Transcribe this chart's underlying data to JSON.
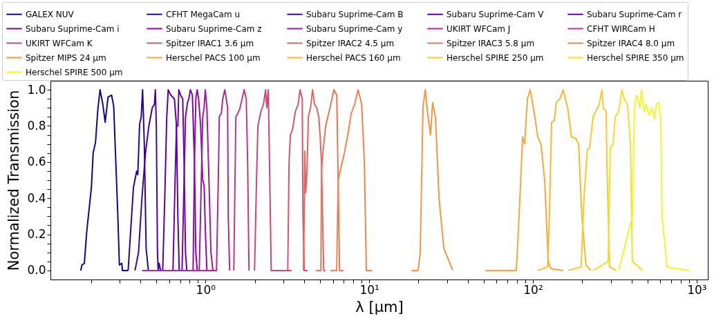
{
  "chart_data": {
    "type": "line",
    "xlabel": "λ [μm]",
    "ylabel": "Normalized Transmission",
    "log": "x",
    "grid": false,
    "legend": "top",
    "marker": "none",
    "line_style": "solid",
    "xlim": [
      0.113,
      1170
    ],
    "ylim": [
      -0.05,
      1.05
    ],
    "xticks": [
      {
        "value": 0.2,
        "label": null
      },
      {
        "value": 0.3,
        "label": null
      },
      {
        "value": 0.4,
        "label": null
      },
      {
        "value": 0.5,
        "label": null
      },
      {
        "value": 0.6,
        "label": null
      },
      {
        "value": 0.7,
        "label": null
      },
      {
        "value": 0.8,
        "label": null
      },
      {
        "value": 0.9,
        "label": null
      },
      {
        "value": 1,
        "label": "10⁰"
      },
      {
        "value": 2,
        "label": null
      },
      {
        "value": 3,
        "label": null
      },
      {
        "value": 4,
        "label": null
      },
      {
        "value": 5,
        "label": null
      },
      {
        "value": 6,
        "label": null
      },
      {
        "value": 7,
        "label": null
      },
      {
        "value": 8,
        "label": null
      },
      {
        "value": 9,
        "label": null
      },
      {
        "value": 10,
        "label": "10¹"
      },
      {
        "value": 20,
        "label": null
      },
      {
        "value": 30,
        "label": null
      },
      {
        "value": 40,
        "label": null
      },
      {
        "value": 50,
        "label": null
      },
      {
        "value": 60,
        "label": null
      },
      {
        "value": 70,
        "label": null
      },
      {
        "value": 80,
        "label": null
      },
      {
        "value": 90,
        "label": null
      },
      {
        "value": 100,
        "label": "10²"
      },
      {
        "value": 200,
        "label": null
      },
      {
        "value": 300,
        "label": null
      },
      {
        "value": 400,
        "label": null
      },
      {
        "value": 500,
        "label": null
      },
      {
        "value": 600,
        "label": null
      },
      {
        "value": 700,
        "label": null
      },
      {
        "value": 800,
        "label": null
      },
      {
        "value": 900,
        "label": null
      },
      {
        "value": 1000,
        "label": "10³"
      }
    ],
    "yticks": [
      {
        "value": 0,
        "label": "0.0"
      },
      {
        "value": 0.05,
        "label": null
      },
      {
        "value": 0.1,
        "label": null
      },
      {
        "value": 0.15,
        "label": null
      },
      {
        "value": 0.2,
        "label": "0.2"
      },
      {
        "value": 0.25,
        "label": null
      },
      {
        "value": 0.3,
        "label": null
      },
      {
        "value": 0.35,
        "label": null
      },
      {
        "value": 0.4,
        "label": "0.4"
      },
      {
        "value": 0.45,
        "label": null
      },
      {
        "value": 0.5,
        "label": null
      },
      {
        "value": 0.55,
        "label": null
      },
      {
        "value": 0.6,
        "label": "0.6"
      },
      {
        "value": 0.65,
        "label": null
      },
      {
        "value": 0.7,
        "label": null
      },
      {
        "value": 0.75,
        "label": null
      },
      {
        "value": 0.8,
        "label": "0.8"
      },
      {
        "value": 0.85,
        "label": null
      },
      {
        "value": 0.9,
        "label": null
      },
      {
        "value": 0.95,
        "label": null
      },
      {
        "value": 1,
        "label": "1.0"
      }
    ],
    "series": [
      {
        "name": "GALEX NUV",
        "color": "#0d0887",
        "x": [
          0.173,
          0.176,
          0.182,
          0.188,
          0.201,
          0.206,
          0.213,
          0.22,
          0.227,
          0.236,
          0.244,
          0.254,
          0.267,
          0.275,
          0.291,
          0.298,
          0.308,
          0.311,
          0.337
        ],
        "values": [
          0,
          0.03,
          0.04,
          0.21,
          0.46,
          0.65,
          0.71,
          0.89,
          1.0,
          0.92,
          0.82,
          0.96,
          0.97,
          0.91,
          0.32,
          0.03,
          0.04,
          0,
          0
        ]
      },
      {
        "name": "CFHT  MegaCam u",
        "color": "#2a0593",
        "x": [
          0.337,
          0.348,
          0.363,
          0.38,
          0.386,
          0.396,
          0.405,
          0.413,
          0.423,
          0.434,
          0.448
        ],
        "values": [
          0,
          0.2,
          0.46,
          0.55,
          0.53,
          0.81,
          0.85,
          1.0,
          0.7,
          0.12,
          0
        ]
      },
      {
        "name": "Subaru Suprime-Cam B",
        "color": "#41049d",
        "x": [
          0.371,
          0.39,
          0.409,
          0.43,
          0.451,
          0.473,
          0.488,
          0.494,
          0.501,
          0.509,
          0.514,
          0.521,
          0.532,
          0.548
        ],
        "values": [
          0,
          0.1,
          0.4,
          0.65,
          0.8,
          0.9,
          0.92,
          1.0,
          0.8,
          0.1,
          0,
          0.04,
          0,
          0
        ]
      },
      {
        "name": "Subaru Suprime-Cam V",
        "color": "#5601a4",
        "x": [
          0.548,
          0.564,
          0.58,
          0.592,
          0.615,
          0.646,
          0.665,
          0.678,
          0.691
        ],
        "values": [
          0,
          0.4,
          0.85,
          1.0,
          0.97,
          0.95,
          0.8,
          0.3,
          0
        ]
      },
      {
        "name": "Subaru Suprime-Cam r",
        "color": "#6a00a8",
        "x": [
          0.633,
          0.652,
          0.665,
          0.678,
          0.687,
          0.705,
          0.726,
          0.74,
          0.755,
          0.769
        ],
        "values": [
          0,
          0.5,
          0.8,
          0.8,
          1.0,
          0.97,
          0.95,
          0.6,
          0.1,
          0
        ]
      },
      {
        "name": "Subaru Suprime-Cam i",
        "color": "#7e03a8",
        "x": [
          0.719,
          0.74,
          0.755,
          0.777,
          0.792,
          0.808,
          0.832,
          0.856,
          0.873,
          0.89
        ],
        "values": [
          0,
          0.5,
          0.85,
          0.93,
          0.95,
          1.0,
          0.97,
          0.6,
          0.1,
          0
        ]
      },
      {
        "name": "Subaru Suprime-Cam z",
        "color": "#8f0da4",
        "x": [
          0.84,
          0.856,
          0.873,
          0.89,
          0.908,
          0.934,
          0.962,
          0.981,
          1.0,
          1.02
        ],
        "values": [
          0,
          0.6,
          0.95,
          1.0,
          0.95,
          0.8,
          0.5,
          0.47,
          0.2,
          0
        ]
      },
      {
        "name": "Subaru Suprime-Cam y",
        "color": "#a01a9c",
        "x": [
          0.916,
          0.943,
          0.962,
          0.981,
          0.997,
          1.02,
          1.05,
          1.08,
          1.11
        ],
        "values": [
          0,
          0.5,
          0.85,
          0.9,
          1.0,
          0.9,
          0.5,
          0.1,
          0
        ]
      },
      {
        "name": "UKIRT WFCam J",
        "color": "#b12a90",
        "x": [
          0.41,
          1.168,
          1.203,
          1.214,
          1.25,
          1.275,
          1.313,
          1.339,
          1.365,
          1.378,
          1.405
        ],
        "values": [
          0,
          0,
          0.6,
          0.85,
          0.87,
          0.95,
          1.0,
          0.95,
          0.9,
          0.3,
          0
        ]
      },
      {
        "name": "CFHT WIRCam H",
        "color": "#bf3984",
        "x": [
          1.489,
          1.533,
          1.579,
          1.625,
          1.674,
          1.723,
          1.774,
          1.809,
          1.844
        ],
        "values": [
          0,
          0.85,
          0.87,
          0.9,
          0.95,
          1.0,
          0.95,
          0.6,
          0
        ]
      },
      {
        "name": "UKIRT WFCam K",
        "color": "#cc4778",
        "x": [
          1.993,
          2.05,
          2.09,
          2.18,
          2.26,
          2.33,
          2.37,
          2.42,
          2.47,
          2.52,
          3.35
        ],
        "values": [
          0,
          0.5,
          0.8,
          0.88,
          0.92,
          1.0,
          0.9,
          1.0,
          0.5,
          0,
          0
        ]
      },
      {
        "name": "Spitzer IRAC1 3.6 μm",
        "color": "#d6556d",
        "x": [
          3.0,
          3.18,
          3.24,
          3.3,
          3.4,
          3.54,
          3.68,
          3.78,
          3.9,
          3.94,
          4.01,
          4.21
        ],
        "values": [
          0,
          0,
          0.6,
          0.75,
          0.78,
          0.88,
          0.92,
          1.0,
          0.95,
          0.3,
          0,
          0
        ]
      },
      {
        "name": "Spitzer IRAC2 4.5 μm",
        "color": "#e16462",
        "x": [
          3.97,
          4.05,
          4.09,
          4.17,
          4.25,
          4.38,
          4.51,
          4.64,
          4.78,
          4.92,
          5.01,
          5.11,
          5.27,
          5.42
        ],
        "values": [
          0,
          0.66,
          0.43,
          0.55,
          0.85,
          0.9,
          1.0,
          0.92,
          0.9,
          0.85,
          0.75,
          0.6,
          0,
          0
        ]
      },
      {
        "name": "Spitzer IRAC3 5.8 μm",
        "color": "#ea7457",
        "x": [
          4.73,
          5.07,
          5.11,
          5.21,
          5.42,
          5.69,
          5.92,
          6.09,
          6.34,
          6.46,
          6.59,
          6.98
        ],
        "values": [
          0,
          0,
          0.55,
          0.65,
          0.8,
          0.88,
          0.95,
          1.0,
          0.97,
          0.5,
          0,
          0
        ]
      },
      {
        "name": "Spitzer IRAC4 8.0 μm",
        "color": "#f2844b",
        "x": [
          5.8,
          6.33,
          6.46,
          6.65,
          7.05,
          7.4,
          7.77,
          8.15,
          8.56,
          8.99,
          9.34,
          9.61,
          10.4
        ],
        "values": [
          0,
          0,
          0.5,
          0.55,
          0.65,
          0.75,
          0.87,
          0.92,
          1.0,
          0.92,
          0.6,
          0,
          0
        ]
      },
      {
        "name": "Spitzer MIPS 24 μm",
        "color": "#f89540",
        "x": [
          18.1,
          19.9,
          20.5,
          21.3,
          22.0,
          22.8,
          23.7,
          24.4,
          25.4,
          26.7,
          28.6,
          32.4
        ],
        "values": [
          0,
          0,
          0.1,
          0.9,
          1.0,
          0.86,
          0.75,
          0.93,
          0.85,
          0.4,
          0.12,
          0
        ]
      },
      {
        "name": "Herschel PACS 100 μm",
        "color": "#fca636",
        "x": [
          51.2,
          79.2,
          82.3,
          86.5,
          89.0,
          92.5,
          96.2,
          102,
          107,
          112,
          118,
          124,
          129,
          153
        ],
        "values": [
          0,
          0,
          0.3,
          0.74,
          0.7,
          0.95,
          1.0,
          0.87,
          0.74,
          0.7,
          0.5,
          0.05,
          0.01,
          0
        ]
      },
      {
        "name": "Herschel PACS 160 μm",
        "color": "#feb72d",
        "x": [
          107,
          123,
          126,
          130,
          135,
          139,
          146,
          153,
          163,
          172,
          183,
          190,
          199,
          211,
          226
        ],
        "values": [
          0,
          0.02,
          0.3,
          0.82,
          0.83,
          0.93,
          0.95,
          1.0,
          0.9,
          0.74,
          0.73,
          0.7,
          0.3,
          0.03,
          0
        ]
      },
      {
        "name": "Herschel SPIRE 250 μm",
        "color": "#fdc926",
        "x": [
          164,
          197,
          205,
          215,
          222,
          233,
          242,
          254,
          264,
          269,
          280,
          283,
          294,
          324
        ],
        "values": [
          0,
          0.02,
          0.4,
          0.67,
          0.68,
          0.85,
          0.88,
          0.92,
          1.0,
          0.9,
          0.88,
          0.6,
          0.02,
          0
        ]
      },
      {
        "name": "Herschel SPIRE 350 μm",
        "color": "#f9dc24",
        "x": [
          233,
          288,
          297,
          309,
          318,
          334,
          350,
          361,
          378,
          394,
          405,
          469
        ],
        "values": [
          0,
          0.05,
          0.68,
          0.7,
          0.85,
          0.88,
          1.0,
          0.95,
          0.92,
          0.7,
          0.05,
          0
        ]
      },
      {
        "name": "Herschel SPIRE 500 μm",
        "color": "#f0f921",
        "x": [
          334,
          405,
          417,
          430,
          438,
          451,
          460,
          478,
          492,
          512,
          532,
          553,
          569,
          586,
          603,
          615,
          659,
          907
        ],
        "values": [
          0,
          0.3,
          0.9,
          0.97,
          0.95,
          0.9,
          1.0,
          0.88,
          0.92,
          0.86,
          0.9,
          0.84,
          0.92,
          0.93,
          0.85,
          0.3,
          0.02,
          0
        ]
      }
    ]
  }
}
